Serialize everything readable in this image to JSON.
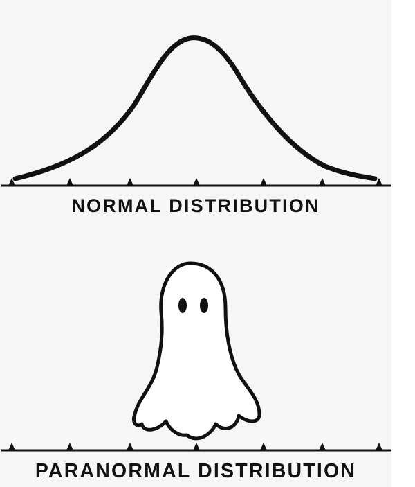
{
  "captions": {
    "normal": "NORMAL DISTRIBUTION",
    "paranormal": "PARANORMAL DISTRIBUTION"
  },
  "colors": {
    "ink": "#111111",
    "background": "#f6f6f6",
    "ghost_fill": "#ffffff"
  },
  "icons": {
    "top_figure": "bell-curve-icon",
    "bottom_figure": "ghost-icon"
  }
}
